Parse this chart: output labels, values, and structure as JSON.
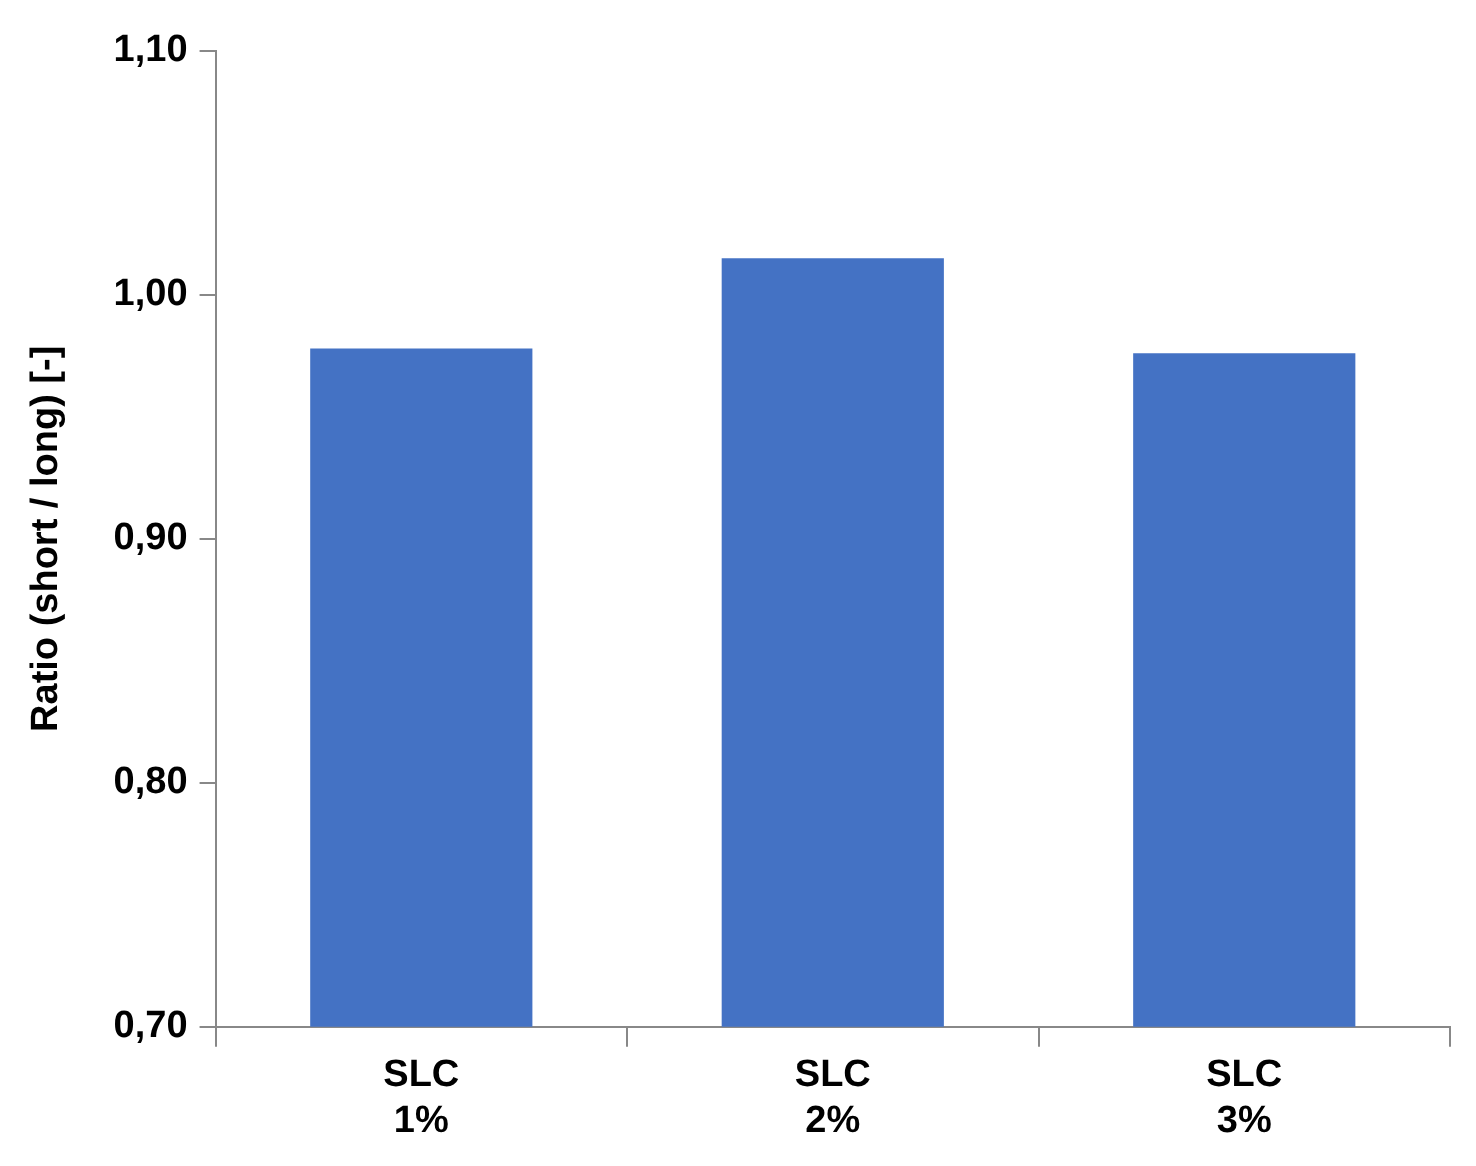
{
  "chart_data": {
    "type": "bar",
    "ylabel": "Ratio (short / long) [-]",
    "categories": [
      "SLC\n1%",
      "SLC\n2%",
      "SLC\n3%"
    ],
    "values": [
      0.978,
      1.015,
      0.976
    ],
    "color": "#4472c4",
    "ylim": [
      0.7,
      1.1
    ],
    "yticks": [
      {
        "value": 0.7,
        "label": "0,70"
      },
      {
        "value": 0.8,
        "label": "0,80"
      },
      {
        "value": 0.9,
        "label": "0,90"
      },
      {
        "value": 1.0,
        "label": "1,00"
      },
      {
        "value": 1.1,
        "label": "1,10"
      }
    ],
    "grid": false,
    "legend": false
  }
}
